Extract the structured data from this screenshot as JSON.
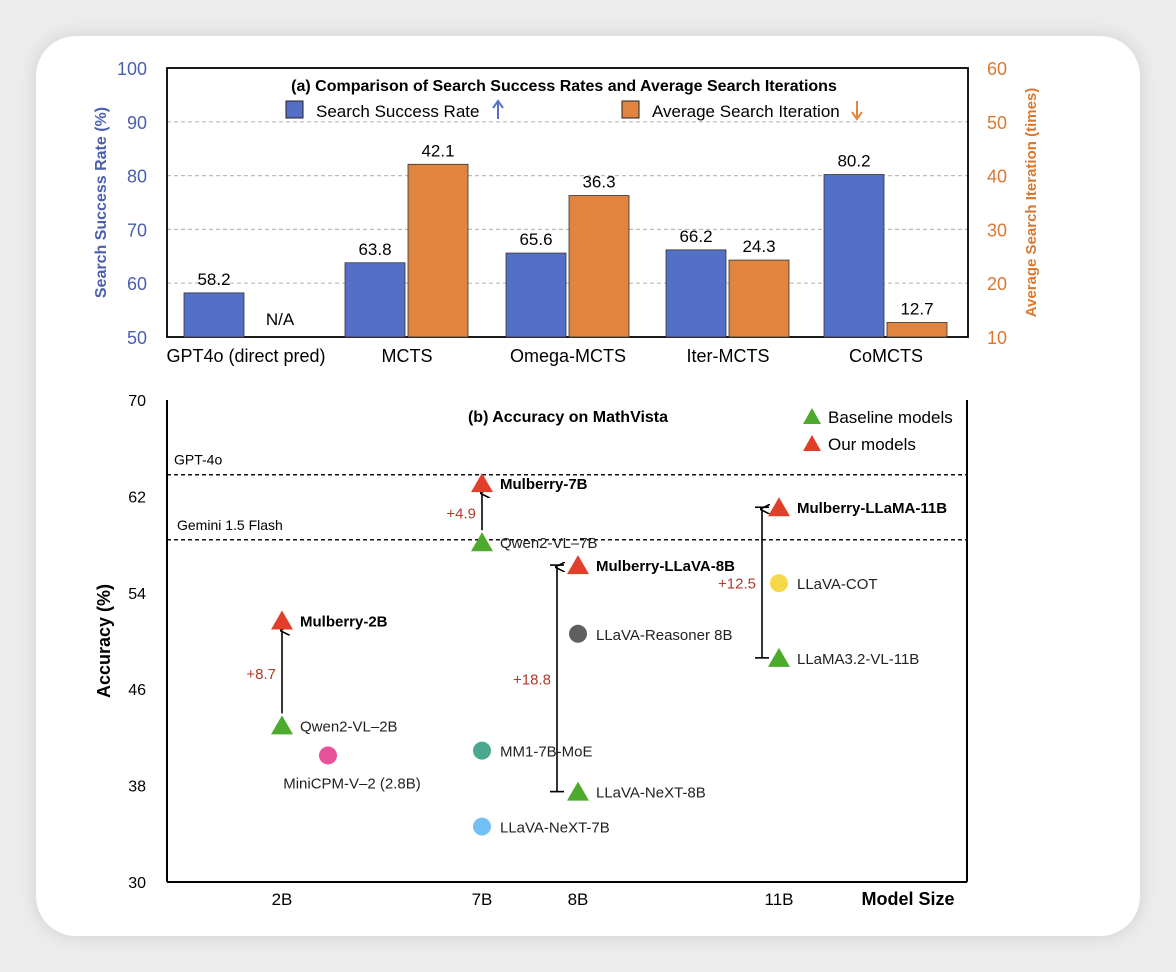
{
  "chart_data": [
    {
      "type": "bar",
      "title": "(a) Comparison of Search Success Rates and Average Search Iterations",
      "categories": [
        "GPT4o (direct pred)",
        "MCTS",
        "Omega-MCTS",
        "Iter-MCTS",
        "CoMCTS"
      ],
      "series": [
        {
          "name": "Search Success Rate",
          "axis": "left",
          "color": "#5470c6",
          "values": [
            58.2,
            63.8,
            65.6,
            66.2,
            80.2
          ],
          "labels": [
            "58.2",
            "63.8",
            "65.6",
            "66.2",
            "80.2"
          ]
        },
        {
          "name": "Average Search Iteration",
          "axis": "right",
          "color": "#e0843f",
          "values": [
            null,
            42.1,
            36.3,
            24.3,
            12.7
          ],
          "labels": [
            "N/A",
            "42.1",
            "36.3",
            "24.3",
            "12.7"
          ]
        }
      ],
      "ylabel": "Search Success Rate (%)",
      "ylabel_color": "#4a5fb0",
      "y2label": "Average Search Iteration (times)",
      "y2label_color": "#d9782f",
      "ylim": [
        50,
        100
      ],
      "y2lim": [
        10,
        60
      ],
      "yticks": [
        "50",
        "60",
        "70",
        "80",
        "90",
        "100"
      ],
      "y2ticks": [
        "10",
        "20",
        "30",
        "40",
        "50",
        "60"
      ],
      "grid": true,
      "legend": "top-center"
    },
    {
      "type": "scatter",
      "title": "(b) Accuracy on MathVista",
      "xlabel": "Model Size",
      "ylabel": "Accuracy (%)",
      "ylim": [
        30,
        70
      ],
      "yticks": [
        "30",
        "38",
        "46",
        "54",
        "62",
        "70"
      ],
      "xcategories": [
        "2B",
        "7B",
        "8B",
        "11B"
      ],
      "legend": [
        {
          "label": "Baseline models",
          "color": "#4daa2c"
        },
        {
          "label": "Our models",
          "color": "#e0402a"
        }
      ],
      "reference_lines": [
        {
          "label": "GPT-4o",
          "value": 63.8
        },
        {
          "label": "Gemini 1.5 Flash",
          "value": 58.4
        }
      ],
      "points": [
        {
          "name": "Mulberry-2B",
          "size": "2B",
          "value": 51.7,
          "marker": "triangle",
          "color": "#e0402a",
          "bold": true
        },
        {
          "name": "Qwen2-VL–2B",
          "size": "2B",
          "value": 43.0,
          "marker": "triangle",
          "color": "#4daa2c",
          "bold": false
        },
        {
          "name": "MiniCPM-V–2 (2.8B)",
          "size": "2.8B",
          "value": 40.5,
          "marker": "circle",
          "color": "#e8529a",
          "bold": false
        },
        {
          "name": "Mulberry-7B",
          "size": "7B",
          "value": 63.1,
          "marker": "triangle",
          "color": "#e0402a",
          "bold": true
        },
        {
          "name": "Qwen2-VL–7B",
          "size": "7B",
          "value": 58.2,
          "marker": "triangle",
          "color": "#4daa2c",
          "bold": false
        },
        {
          "name": "MM1-7B-MoE",
          "size": "7B",
          "value": 40.9,
          "marker": "circle",
          "color": "#4aa88e",
          "bold": false
        },
        {
          "name": "LLaVA-NeXT-7B",
          "size": "7B",
          "value": 34.6,
          "marker": "circle",
          "color": "#74bff5",
          "bold": false
        },
        {
          "name": "Mulberry-LLaVA-8B",
          "size": "8B",
          "value": 56.3,
          "marker": "triangle",
          "color": "#e0402a",
          "bold": true
        },
        {
          "name": "LLaVA-Reasoner 8B",
          "size": "8B",
          "value": 50.6,
          "marker": "circle",
          "color": "#5f5f5f",
          "bold": false
        },
        {
          "name": "LLaVA-NeXT-8B",
          "size": "8B",
          "value": 37.5,
          "marker": "triangle",
          "color": "#4daa2c",
          "bold": false
        },
        {
          "name": "Mulberry-LLaMA-11B",
          "size": "11B",
          "value": 61.1,
          "marker": "triangle",
          "color": "#e0402a",
          "bold": true
        },
        {
          "name": "LLaVA-COT",
          "size": "11B",
          "value": 54.8,
          "marker": "circle",
          "color": "#f5d84a",
          "bold": false
        },
        {
          "name": "LLaMA3.2-VL-11B",
          "size": "11B",
          "value": 48.6,
          "marker": "triangle",
          "color": "#4daa2c",
          "bold": false
        }
      ],
      "gains": [
        {
          "label": "+8.7",
          "from": 43.0,
          "to": 51.7,
          "size": "2B"
        },
        {
          "label": "+4.9",
          "from": 58.2,
          "to": 63.1,
          "size": "7B"
        },
        {
          "label": "+18.8",
          "from": 37.5,
          "to": 56.3,
          "size": "8B"
        },
        {
          "label": "+12.5",
          "from": 48.6,
          "to": 61.1,
          "size": "11B"
        }
      ],
      "gain_color": "#b03a2a"
    }
  ]
}
